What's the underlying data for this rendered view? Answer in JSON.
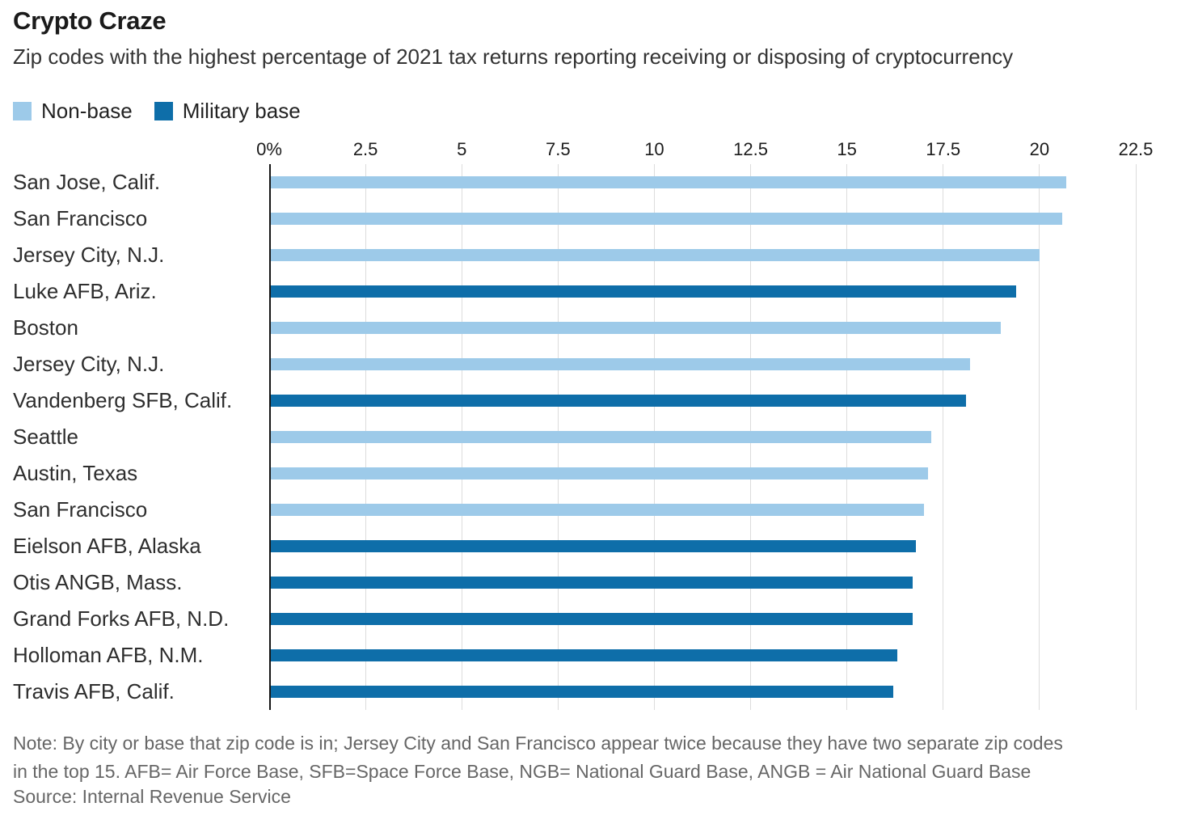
{
  "chart_data": {
    "type": "bar",
    "orientation": "horizontal",
    "title": "Crypto Craze",
    "subtitle": "Zip codes with the highest percentage of 2021 tax returns reporting receiving or disposing of cryptocurrency",
    "categories": [
      "San Jose, Calif.",
      "San Francisco",
      "Jersey City, N.J.",
      "Luke AFB, Ariz.",
      "Boston",
      "Jersey City, N.J.",
      "Vandenberg SFB, Calif.",
      "Seattle",
      "Austin, Texas",
      "San Francisco",
      "Eielson AFB, Alaska",
      "Otis ANGB, Mass.",
      "Grand Forks AFB, N.D.",
      "Holloman AFB, N.M.",
      "Travis AFB, Calif."
    ],
    "values": [
      20.7,
      20.6,
      20.0,
      19.4,
      19.0,
      18.2,
      18.1,
      17.2,
      17.1,
      17.0,
      16.8,
      16.7,
      16.7,
      16.3,
      16.2
    ],
    "groups": [
      "non_base",
      "non_base",
      "non_base",
      "military",
      "non_base",
      "non_base",
      "military",
      "non_base",
      "non_base",
      "non_base",
      "military",
      "military",
      "military",
      "military",
      "military"
    ],
    "legend": [
      {
        "key": "non_base",
        "label": "Non-base",
        "color": "#9DCAE9"
      },
      {
        "key": "military",
        "label": "Military base",
        "color": "#0E6EA9"
      }
    ],
    "x_ticks": [
      "0%",
      "2.5",
      "5",
      "7.5",
      "10",
      "12.5",
      "15",
      "17.5",
      "20",
      "22.5"
    ],
    "x_tick_values": [
      0,
      2.5,
      5,
      7.5,
      10,
      12.5,
      15,
      17.5,
      20,
      22.5
    ],
    "xlim": [
      0,
      22.5
    ],
    "grid": true,
    "legend_position": "top",
    "colors": {
      "gridline": "#dcdcdc",
      "axis": "#151515"
    },
    "note_lines": [
      "Note: By city or base that zip code is in; Jersey City and San Francisco appear twice because they have two separate zip codes",
      "in the top 15. AFB= Air Force Base, SFB=Space Force Base, NGB= National Guard Base, ANGB = Air National Guard Base"
    ],
    "source": "Source: Internal Revenue Service"
  }
}
